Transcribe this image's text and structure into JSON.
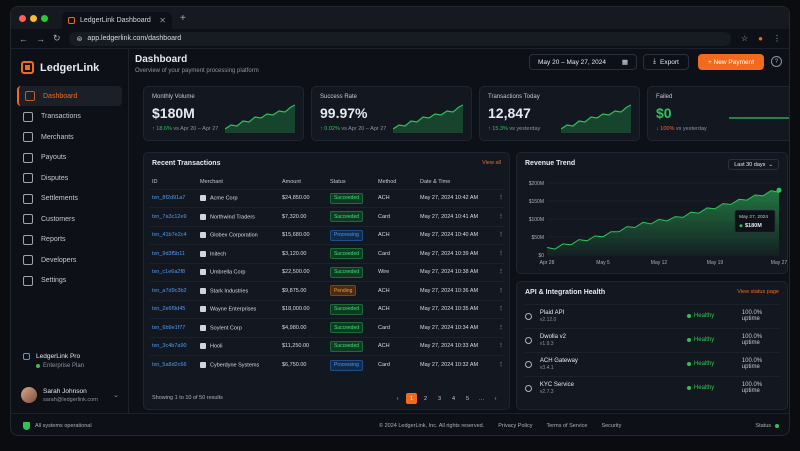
{
  "browser": {
    "tab_title": "LedgerLink Dashboard",
    "url": "app.ledgerlink.com/dashboard"
  },
  "sidebar": {
    "brand": "LedgerLink",
    "items": [
      {
        "label": "Dashboard",
        "icon": "home-icon"
      },
      {
        "label": "Transactions",
        "icon": "list-icon"
      },
      {
        "label": "Merchants",
        "icon": "store-icon"
      },
      {
        "label": "Payouts",
        "icon": "dollar-icon"
      },
      {
        "label": "Disputes",
        "icon": "alert-icon"
      },
      {
        "label": "Settlements",
        "icon": "calendar-icon"
      },
      {
        "label": "Customers",
        "icon": "users-icon"
      },
      {
        "label": "Reports",
        "icon": "report-icon"
      },
      {
        "label": "Developers",
        "icon": "code-icon"
      },
      {
        "label": "Settings",
        "icon": "gear-icon"
      }
    ],
    "plan_title": "LedgerLink Pro",
    "plan_sub": "Enterprise Plan",
    "user_name": "Sarah Johnson",
    "user_email": "sarah@ledgerlink.com"
  },
  "header": {
    "title": "Dashboard",
    "subtitle": "Overview of your payment processing platform",
    "date_range": "May 20 – May 27, 2024",
    "export": "Export",
    "new_payment": "+ New Payment",
    "help": "?"
  },
  "kpis": [
    {
      "label": "Monthly Volume",
      "value": "$180M",
      "change": "↑ 18.6%",
      "compare": "vs Apr 20 – Apr 27",
      "trend": "up"
    },
    {
      "label": "Success Rate",
      "value": "99.97%",
      "change": "↑ 0.02%",
      "compare": "vs Apr 20 – Apr 27",
      "trend": "up"
    },
    {
      "label": "Transactions Today",
      "value": "12,847",
      "change": "↑ 15.3%",
      "compare": "vs yesterday",
      "trend": "up"
    },
    {
      "label": "Failed",
      "value": "$0",
      "change": "↓ 100%",
      "compare": "vs yesterday",
      "trend": "flat"
    }
  ],
  "transactions": {
    "title": "Recent Transactions",
    "view_all": "View all",
    "columns": [
      "ID",
      "Merchant",
      "Amount",
      "Status",
      "Method",
      "Date & Time"
    ],
    "rows": [
      [
        "txn_8f2d91a7",
        "Acme Corp",
        "$24,850.00",
        "Succeeded",
        "ACH",
        "May 27, 2024 10:42 AM"
      ],
      [
        "txn_7a3c12e9",
        "Northwind Traders",
        "$7,320.00",
        "Succeeded",
        "Card",
        "May 27, 2024 10:41 AM"
      ],
      [
        "txn_41b7e2c4",
        "Globex Corporation",
        "$15,680.00",
        "Processing",
        "ACH",
        "May 27, 2024 10:40 AM"
      ],
      [
        "txn_9d3f5b11",
        "Initech",
        "$3,120.00",
        "Succeeded",
        "Card",
        "May 27, 2024 10:39 AM"
      ],
      [
        "txn_c1e6a2f8",
        "Umbrella Corp",
        "$22,500.00",
        "Succeeded",
        "Wire",
        "May 27, 2024 10:38 AM"
      ],
      [
        "txn_a7d9c3b2",
        "Stark Industries",
        "$9,875.00",
        "Pending",
        "ACH",
        "May 27, 2024 10:36 AM"
      ],
      [
        "txn_2e6f9d45",
        "Wayne Enterprises",
        "$18,000.00",
        "Succeeded",
        "ACH",
        "May 27, 2024 10:35 AM"
      ],
      [
        "txn_6b9e1f77",
        "Soylent Corp",
        "$4,980.00",
        "Succeeded",
        "Card",
        "May 27, 2024 10:34 AM"
      ],
      [
        "txn_3c4b7a90",
        "Hooli",
        "$11,250.00",
        "Succeeded",
        "ACH",
        "May 27, 2024 10:33 AM"
      ],
      [
        "txn_5a8d2c66",
        "Cyberdyne Systems",
        "$6,750.00",
        "Processing",
        "Card",
        "May 27, 2024 10:32 AM"
      ]
    ],
    "showing": "Showing 1 to 10 of 50 results",
    "pages": [
      "‹",
      "1",
      "2",
      "3",
      "4",
      "5",
      "…",
      "›"
    ],
    "current_page": "1"
  },
  "revenue": {
    "title": "Revenue Trend",
    "range": "Last 30 days",
    "tooltip_date": "May 27, 2024",
    "tooltip_value": "$180M",
    "y_ticks": [
      "$200M",
      "$150M",
      "$100M",
      "$50M",
      "$0"
    ],
    "x_ticks": [
      "Apr 28",
      "May 5",
      "May 12",
      "May 19",
      "May 27"
    ]
  },
  "chart_data": {
    "type": "area",
    "title": "Revenue Trend",
    "x": [
      "Apr 28",
      "Apr 29",
      "Apr 30",
      "May 1",
      "May 2",
      "May 3",
      "May 4",
      "May 5",
      "May 6",
      "May 7",
      "May 8",
      "May 9",
      "May 10",
      "May 11",
      "May 12",
      "May 13",
      "May 14",
      "May 15",
      "May 16",
      "May 17",
      "May 18",
      "May 19",
      "May 20",
      "May 21",
      "May 22",
      "May 23",
      "May 24",
      "May 25",
      "May 26",
      "May 27"
    ],
    "values": [
      18,
      22,
      28,
      34,
      40,
      45,
      50,
      56,
      62,
      70,
      76,
      82,
      88,
      92,
      96,
      100,
      104,
      110,
      116,
      122,
      128,
      134,
      140,
      146,
      152,
      158,
      164,
      170,
      176,
      180
    ],
    "ylim": [
      0,
      200
    ],
    "ylabel": "",
    "xlabel": ""
  },
  "api": {
    "title": "API & Integration Health",
    "link": "View status page",
    "services": [
      {
        "name": "Plaid API",
        "version": "v2.12.0",
        "status": "Healthy",
        "uptime": "100.0% uptime"
      },
      {
        "name": "Dwolla v2",
        "version": "v1.9.3",
        "status": "Healthy",
        "uptime": "100.0% uptime"
      },
      {
        "name": "ACH Gateway",
        "version": "v3.4.1",
        "status": "Healthy",
        "uptime": "100.0% uptime"
      },
      {
        "name": "KYC Service",
        "version": "v2.7.3",
        "status": "Healthy",
        "uptime": "100.0% uptime"
      }
    ]
  },
  "footer": {
    "system": "All systems operational",
    "copyright": "© 2024 LedgerLink, Inc. All rights reserved.",
    "privacy": "Privacy Policy",
    "terms": "Terms of Service",
    "security": "Security",
    "status": "Status"
  },
  "colors": {
    "accent": "#f26b1d",
    "success": "#2ec35a",
    "link": "#4d9bf0"
  }
}
